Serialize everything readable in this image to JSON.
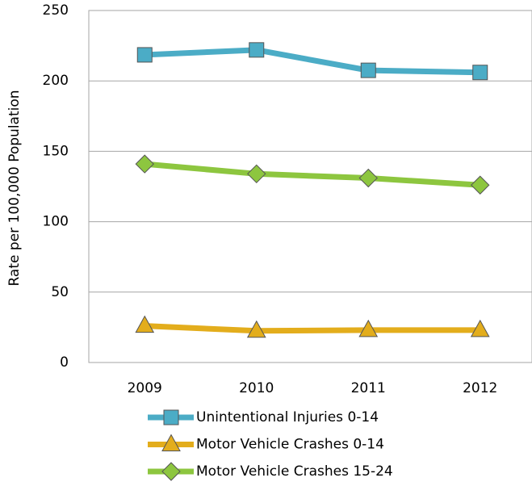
{
  "chart_data": {
    "type": "line",
    "y_label": "Rate per 100,000 Population",
    "categories": [
      "2009",
      "2010",
      "2011",
      "2012"
    ],
    "series": [
      {
        "name": "Unintentional Injuries 0-14",
        "color": "#4bacc6",
        "marker": "square",
        "values": [
          218.5,
          222,
          207.5,
          206
        ]
      },
      {
        "name": "Motor Vehicle Crashes 0-14",
        "color": "#e3ad1c",
        "marker": "triangle",
        "values": [
          26,
          22.5,
          23,
          23
        ]
      },
      {
        "name": "Motor Vehicle Crashes 15-24",
        "color": "#8dc63f",
        "marker": "diamond",
        "values": [
          141,
          134,
          131,
          126
        ]
      }
    ],
    "ylim": [
      0,
      250
    ],
    "yticks": [
      0,
      50,
      100,
      150,
      200,
      250
    ],
    "grid": true,
    "legend": "bottom"
  }
}
